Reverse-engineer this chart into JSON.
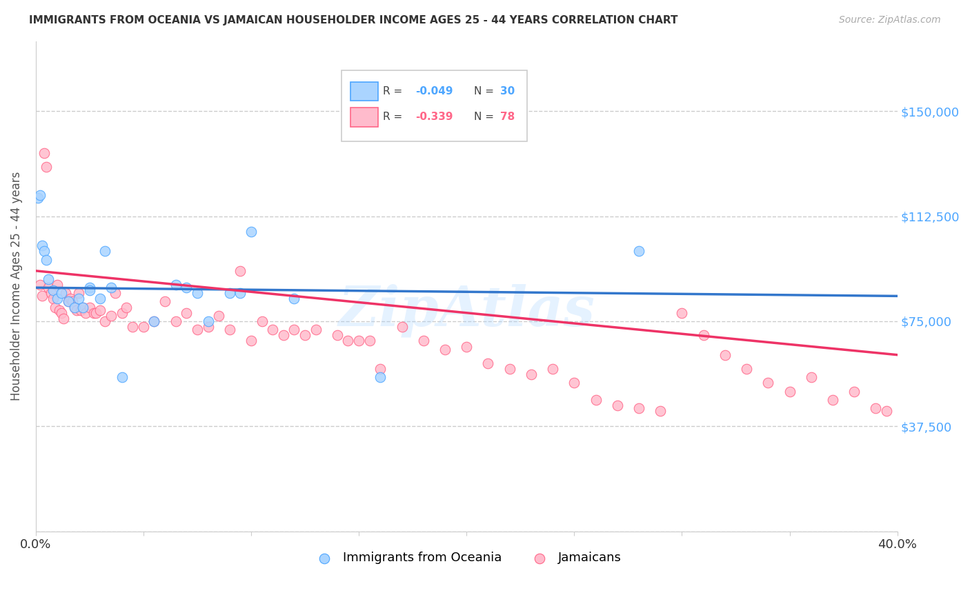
{
  "title": "IMMIGRANTS FROM OCEANIA VS JAMAICAN HOUSEHOLDER INCOME AGES 25 - 44 YEARS CORRELATION CHART",
  "source": "Source: ZipAtlas.com",
  "ylabel": "Householder Income Ages 25 - 44 years",
  "xlim": [
    0.0,
    0.4
  ],
  "ylim": [
    0,
    175000
  ],
  "yticks": [
    0,
    37500,
    75000,
    112500,
    150000
  ],
  "ytick_labels": [
    "",
    "$37,500",
    "$75,000",
    "$112,500",
    "$150,000"
  ],
  "background_color": "#ffffff",
  "grid_color": "#cccccc",
  "title_color": "#333333",
  "axis_label_color": "#555555",
  "legend_color1": "#4da6ff",
  "legend_color2": "#ff6688",
  "scatter_color1": "#aad4ff",
  "scatter_color2": "#ffbbcc",
  "line_color1": "#3377cc",
  "line_color2": "#ee3366",
  "scatter_alpha": 0.85,
  "marker_size": 110,
  "watermark": "ZipAtlas",
  "oceania_x": [
    0.001,
    0.002,
    0.003,
    0.004,
    0.005,
    0.006,
    0.008,
    0.01,
    0.012,
    0.015,
    0.018,
    0.02,
    0.022,
    0.025,
    0.025,
    0.03,
    0.032,
    0.035,
    0.04,
    0.055,
    0.065,
    0.07,
    0.075,
    0.08,
    0.09,
    0.095,
    0.1,
    0.12,
    0.16,
    0.28
  ],
  "oceania_y": [
    119000,
    120000,
    102000,
    100000,
    97000,
    90000,
    86000,
    83000,
    85000,
    82000,
    80000,
    83000,
    80000,
    87000,
    86000,
    83000,
    100000,
    87000,
    55000,
    75000,
    88000,
    87000,
    85000,
    75000,
    85000,
    85000,
    107000,
    83000,
    55000,
    100000
  ],
  "jamaican_x": [
    0.002,
    0.003,
    0.004,
    0.005,
    0.006,
    0.007,
    0.008,
    0.009,
    0.01,
    0.011,
    0.012,
    0.013,
    0.014,
    0.015,
    0.016,
    0.017,
    0.018,
    0.019,
    0.02,
    0.021,
    0.022,
    0.023,
    0.025,
    0.027,
    0.028,
    0.03,
    0.032,
    0.035,
    0.037,
    0.04,
    0.042,
    0.045,
    0.05,
    0.055,
    0.06,
    0.065,
    0.07,
    0.075,
    0.08,
    0.085,
    0.09,
    0.095,
    0.1,
    0.105,
    0.11,
    0.115,
    0.12,
    0.125,
    0.13,
    0.14,
    0.145,
    0.15,
    0.155,
    0.16,
    0.17,
    0.18,
    0.19,
    0.2,
    0.21,
    0.22,
    0.23,
    0.24,
    0.25,
    0.26,
    0.27,
    0.28,
    0.29,
    0.3,
    0.31,
    0.32,
    0.33,
    0.34,
    0.35,
    0.36,
    0.37,
    0.38,
    0.39,
    0.395
  ],
  "jamaican_y": [
    88000,
    84000,
    135000,
    130000,
    87000,
    85000,
    83000,
    80000,
    88000,
    79000,
    78000,
    76000,
    85000,
    82000,
    83000,
    82000,
    80000,
    79000,
    85000,
    79000,
    80000,
    78000,
    80000,
    78000,
    78000,
    79000,
    75000,
    77000,
    85000,
    78000,
    80000,
    73000,
    73000,
    75000,
    82000,
    75000,
    78000,
    72000,
    73000,
    77000,
    72000,
    93000,
    68000,
    75000,
    72000,
    70000,
    72000,
    70000,
    72000,
    70000,
    68000,
    68000,
    68000,
    58000,
    73000,
    68000,
    65000,
    66000,
    60000,
    58000,
    56000,
    58000,
    53000,
    47000,
    45000,
    44000,
    43000,
    78000,
    70000,
    63000,
    58000,
    53000,
    50000,
    55000,
    47000,
    50000,
    44000,
    43000
  ]
}
